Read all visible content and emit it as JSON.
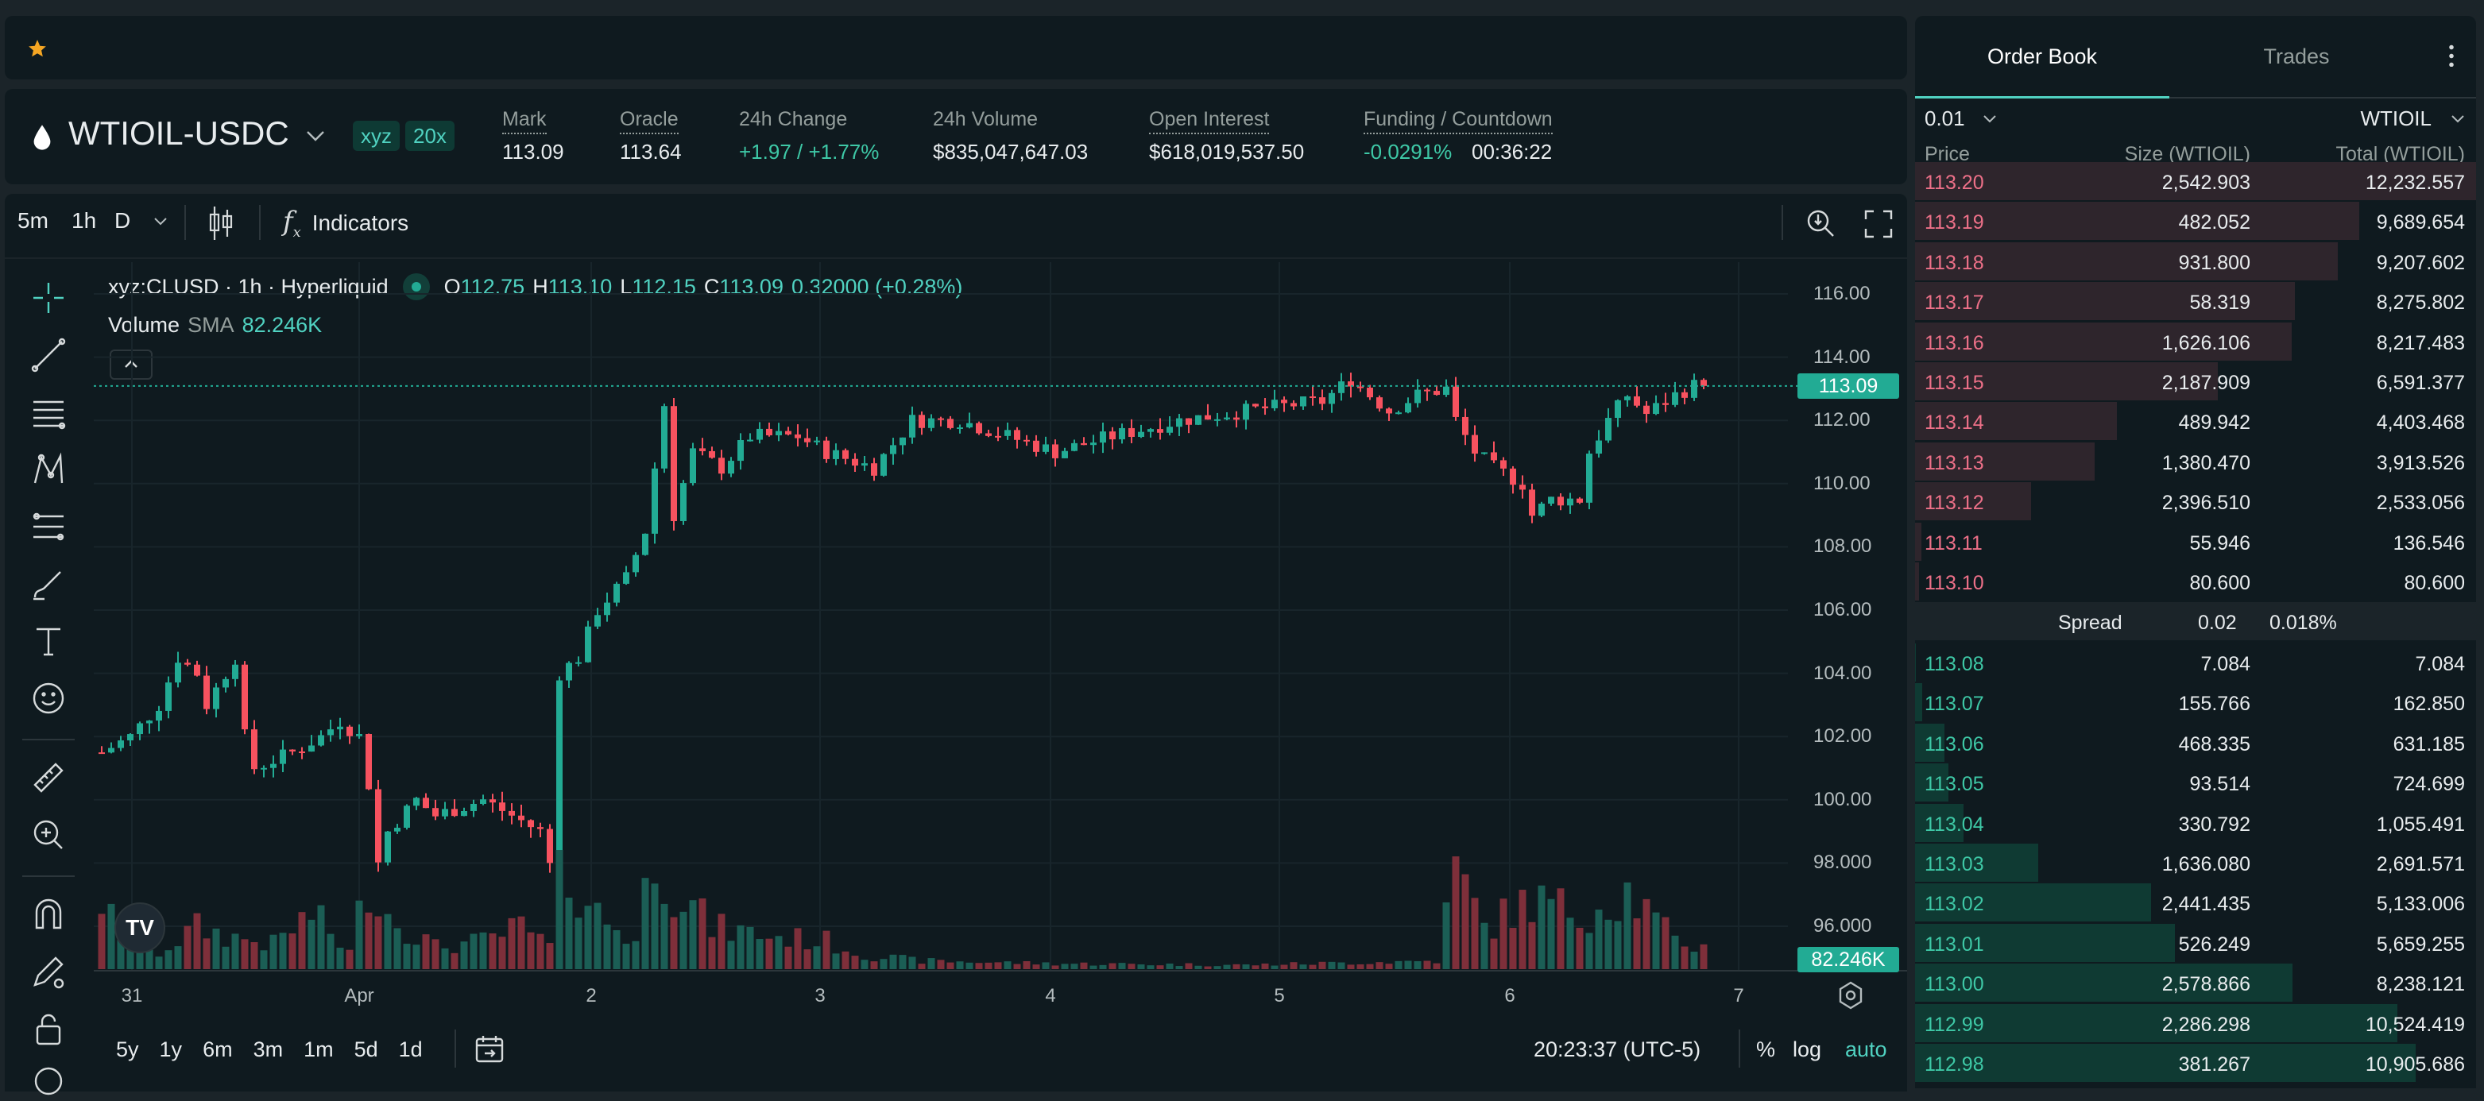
{
  "colors": {
    "up": "#22ab94",
    "down": "#f7525f",
    "up_vol": "#1b5e55",
    "down_vol": "#7e2f3a",
    "accent": "#50d2c1",
    "ask_bg": "#2e252c",
    "bid_bg": "#0f3a33"
  },
  "favorites": {
    "icon": "star-icon"
  },
  "header": {
    "symbol": "WTIOIL-USDC",
    "badge_dex": "xyz",
    "badge_leverage": "20x",
    "stats": [
      {
        "label": "Mark",
        "value": "113.09"
      },
      {
        "label": "Oracle",
        "value": "113.64"
      },
      {
        "label": "24h Change",
        "value": "+1.97 / +1.77%"
      },
      {
        "label": "24h Volume",
        "value": "$835,047,647.03"
      },
      {
        "label": "Open Interest",
        "value": "$618,019,537.50"
      },
      {
        "label": "Funding / Countdown",
        "value": "-0.0291%",
        "value2": "00:36:22"
      }
    ]
  },
  "chart_toolbar": {
    "intervals": [
      "5m",
      "1h",
      "D"
    ],
    "active_interval": "1h",
    "indicators_label": "Indicators"
  },
  "legend": {
    "title": "xyz:CLUSD · 1h · Hyperliquid",
    "o_label": "O",
    "o": "112.75",
    "h_label": "H",
    "h": "113.10",
    "l_label": "L",
    "l": "112.15",
    "c_label": "C",
    "c": "113.09",
    "change": "0.32000 (+0.28%)",
    "volume_label": "Volume",
    "sma_label": "SMA",
    "sma_value": "82.246K"
  },
  "chart_data": {
    "type": "candlestick",
    "symbol": "xyz:CLUSD",
    "interval": "1h",
    "price_ticks": [
      "116.00",
      "114.00",
      "112.00",
      "110.00",
      "108.00",
      "106.00",
      "104.00",
      "102.00",
      "100.00",
      "98.000",
      "96.000"
    ],
    "ylim": [
      96,
      116
    ],
    "time_ticks": [
      {
        "label": "31"
      },
      {
        "label": "Apr"
      },
      {
        "label": "2"
      },
      {
        "label": "3"
      },
      {
        "label": "4"
      },
      {
        "label": "5"
      },
      {
        "label": "6"
      },
      {
        "label": "7"
      }
    ],
    "last_price": "113.09",
    "last_price_value": 113.09,
    "volume_sma_label": "82.246K",
    "close_path": [
      [
        0,
        101.5
      ],
      [
        3,
        102
      ],
      [
        6,
        103
      ],
      [
        8,
        104.5
      ],
      [
        10,
        104
      ],
      [
        11,
        103
      ],
      [
        14,
        104.5
      ],
      [
        15,
        102
      ],
      [
        16,
        101
      ],
      [
        20,
        101.5
      ],
      [
        23,
        102
      ],
      [
        25,
        102.5
      ],
      [
        27,
        102
      ],
      [
        28,
        100.5
      ],
      [
        29,
        98
      ],
      [
        30,
        99
      ],
      [
        33,
        100
      ],
      [
        35,
        99.5
      ],
      [
        40,
        100
      ],
      [
        43,
        99.5
      ],
      [
        46,
        99
      ],
      [
        47,
        98
      ],
      [
        48,
        104
      ],
      [
        50,
        104.5
      ],
      [
        52,
        106
      ],
      [
        55,
        107
      ],
      [
        57,
        108.5
      ],
      [
        59,
        112.5
      ],
      [
        60,
        109
      ],
      [
        62,
        111
      ],
      [
        65,
        110.5
      ],
      [
        68,
        111.5
      ],
      [
        73,
        111.5
      ],
      [
        76,
        111
      ],
      [
        81,
        110.5
      ],
      [
        85,
        112
      ],
      [
        90,
        112
      ],
      [
        95,
        111.5
      ],
      [
        100,
        111
      ],
      [
        106,
        111.5
      ],
      [
        113,
        112
      ],
      [
        120,
        112.3
      ],
      [
        125,
        112.5
      ],
      [
        128,
        112.6
      ],
      [
        131,
        113.3
      ],
      [
        135,
        112.3
      ],
      [
        138,
        112.8
      ],
      [
        141,
        113
      ],
      [
        142,
        112
      ],
      [
        144,
        111
      ],
      [
        146,
        110.5
      ],
      [
        149,
        110
      ],
      [
        150,
        109
      ],
      [
        152,
        109.5
      ],
      [
        155,
        109.5
      ],
      [
        156,
        111
      ],
      [
        158,
        112
      ],
      [
        160,
        112.8
      ],
      [
        162,
        112.2
      ],
      [
        165,
        112.8
      ],
      [
        167,
        113.1
      ],
      [
        168,
        113.09
      ]
    ],
    "volume_path_k": [
      [
        0,
        250
      ],
      [
        2,
        110
      ],
      [
        6,
        60
      ],
      [
        10,
        150
      ],
      [
        13,
        120
      ],
      [
        18,
        90
      ],
      [
        22,
        200
      ],
      [
        26,
        60
      ],
      [
        28,
        330
      ],
      [
        30,
        200
      ],
      [
        35,
        80
      ],
      [
        40,
        100
      ],
      [
        44,
        150
      ],
      [
        47,
        80
      ],
      [
        48,
        400
      ],
      [
        52,
        200
      ],
      [
        56,
        100
      ],
      [
        58,
        450
      ],
      [
        60,
        300
      ],
      [
        64,
        150
      ],
      [
        70,
        120
      ],
      [
        76,
        100
      ],
      [
        80,
        50
      ],
      [
        86,
        30
      ],
      [
        100,
        20
      ],
      [
        120,
        15
      ],
      [
        140,
        30
      ],
      [
        142,
        360
      ],
      [
        145,
        150
      ],
      [
        150,
        250
      ],
      [
        155,
        200
      ],
      [
        160,
        280
      ],
      [
        165,
        100
      ],
      [
        168,
        80
      ]
    ]
  },
  "bottom_bar": {
    "ranges": [
      "5y",
      "1y",
      "6m",
      "3m",
      "1m",
      "5d",
      "1d"
    ],
    "clock": "20:23:37 (UTC-5)",
    "percent": "%",
    "log": "log",
    "auto": "auto"
  },
  "order_book": {
    "tabs": [
      "Order Book",
      "Trades"
    ],
    "active_tab": "Order Book",
    "tick_size": "0.01",
    "unit": "WTIOIL",
    "columns": [
      "Price",
      "Size (WTIOIL)",
      "Total (WTIOIL)"
    ],
    "asks": [
      {
        "price": "113.20",
        "size": "2,542.903",
        "total": "12,232.557"
      },
      {
        "price": "113.19",
        "size": "482.052",
        "total": "9,689.654"
      },
      {
        "price": "113.18",
        "size": "931.800",
        "total": "9,207.602"
      },
      {
        "price": "113.17",
        "size": "58.319",
        "total": "8,275.802"
      },
      {
        "price": "113.16",
        "size": "1,626.106",
        "total": "8,217.483"
      },
      {
        "price": "113.15",
        "size": "2,187.909",
        "total": "6,591.377"
      },
      {
        "price": "113.14",
        "size": "489.942",
        "total": "4,403.468"
      },
      {
        "price": "113.13",
        "size": "1,380.470",
        "total": "3,913.526"
      },
      {
        "price": "113.12",
        "size": "2,396.510",
        "total": "2,533.056"
      },
      {
        "price": "113.11",
        "size": "55.946",
        "total": "136.546"
      },
      {
        "price": "113.10",
        "size": "80.600",
        "total": "80.600"
      }
    ],
    "spread": {
      "label": "Spread",
      "value": "0.02",
      "percent": "0.018%"
    },
    "bids": [
      {
        "price": "113.08",
        "size": "7.084",
        "total": "7.084"
      },
      {
        "price": "113.07",
        "size": "155.766",
        "total": "162.850"
      },
      {
        "price": "113.06",
        "size": "468.335",
        "total": "631.185"
      },
      {
        "price": "113.05",
        "size": "93.514",
        "total": "724.699"
      },
      {
        "price": "113.04",
        "size": "330.792",
        "total": "1,055.491"
      },
      {
        "price": "113.03",
        "size": "1,636.080",
        "total": "2,691.571"
      },
      {
        "price": "113.02",
        "size": "2,441.435",
        "total": "5,133.006"
      },
      {
        "price": "113.01",
        "size": "526.249",
        "total": "5,659.255"
      },
      {
        "price": "113.00",
        "size": "2,578.866",
        "total": "8,238.121"
      },
      {
        "price": "112.99",
        "size": "2,286.298",
        "total": "10,524.419"
      },
      {
        "price": "112.98",
        "size": "381.267",
        "total": "10,905.686"
      }
    ]
  }
}
